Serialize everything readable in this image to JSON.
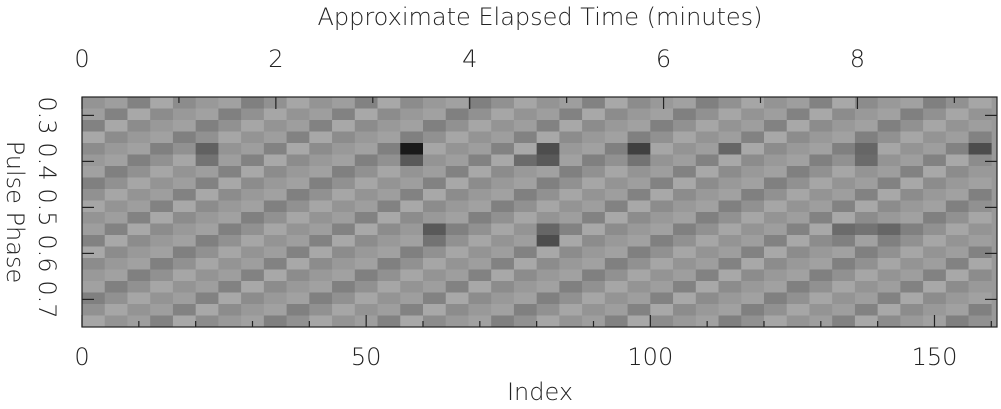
{
  "chart_data": {
    "type": "heatmap",
    "x2label": "Approximate Elapsed Time (minutes)",
    "xlabel": "Index",
    "ylabel": "Pulse Phase",
    "xlim": [
      0,
      161
    ],
    "xticks": [
      0,
      50,
      100,
      150
    ],
    "xminorticks": [
      10,
      20,
      30,
      40,
      60,
      70,
      80,
      90,
      110,
      120,
      130,
      140,
      160
    ],
    "x2lim": [
      0,
      9.44
    ],
    "x2ticks": [
      0,
      2,
      4,
      6,
      8
    ],
    "x2minorticks": [
      1,
      3,
      5,
      7,
      9
    ],
    "ylim": [
      0.26,
      0.76
    ],
    "yticks": [
      0.3,
      0.4,
      0.5,
      0.6,
      0.7
    ],
    "yinverted": true,
    "xbins": [
      0,
      4,
      8,
      12,
      16,
      20,
      24,
      28,
      32,
      36,
      40,
      44,
      48,
      52,
      56,
      60,
      64,
      68,
      72,
      76,
      80,
      84,
      88,
      92,
      96,
      100,
      104,
      108,
      112,
      116,
      120,
      124,
      128,
      132,
      136,
      140,
      144,
      148,
      152,
      156,
      160
    ],
    "ybins": [
      0.26,
      0.285,
      0.31,
      0.335,
      0.36,
      0.385,
      0.41,
      0.435,
      0.46,
      0.485,
      0.51,
      0.535,
      0.56,
      0.585,
      0.61,
      0.635,
      0.66,
      0.685,
      0.71,
      0.735,
      0.76
    ],
    "z": [
      [
        0.58,
        0.62,
        0.51,
        0.66,
        0.55,
        0.6,
        0.63,
        0.5,
        0.57,
        0.65,
        0.58,
        0.62,
        0.51,
        0.66,
        0.55,
        0.6,
        0.63,
        0.5,
        0.57,
        0.65,
        0.58,
        0.62,
        0.51,
        0.66,
        0.55,
        0.6,
        0.63,
        0.5,
        0.57,
        0.65,
        0.58,
        0.62,
        0.51,
        0.66,
        0.55,
        0.6,
        0.63,
        0.5,
        0.57,
        0.65
      ],
      [
        0.62,
        0.51,
        0.66,
        0.55,
        0.6,
        0.63,
        0.5,
        0.57,
        0.65,
        0.58,
        0.62,
        0.51,
        0.66,
        0.55,
        0.6,
        0.63,
        0.5,
        0.57,
        0.65,
        0.58,
        0.62,
        0.51,
        0.66,
        0.55,
        0.6,
        0.63,
        0.5,
        0.57,
        0.65,
        0.58,
        0.62,
        0.51,
        0.66,
        0.55,
        0.6,
        0.63,
        0.5,
        0.57,
        0.65,
        0.58
      ],
      [
        0.51,
        0.66,
        0.55,
        0.6,
        0.63,
        0.5,
        0.57,
        0.65,
        0.58,
        0.62,
        0.51,
        0.66,
        0.55,
        0.6,
        0.63,
        0.5,
        0.57,
        0.65,
        0.58,
        0.62,
        0.51,
        0.66,
        0.55,
        0.6,
        0.63,
        0.5,
        0.57,
        0.65,
        0.58,
        0.62,
        0.51,
        0.66,
        0.55,
        0.6,
        0.63,
        0.5,
        0.57,
        0.65,
        0.58,
        0.62
      ],
      [
        0.66,
        0.55,
        0.6,
        0.63,
        0.5,
        0.57,
        0.65,
        0.58,
        0.62,
        0.51,
        0.66,
        0.55,
        0.6,
        0.63,
        0.5,
        0.57,
        0.65,
        0.58,
        0.62,
        0.51,
        0.66,
        0.55,
        0.6,
        0.63,
        0.5,
        0.57,
        0.65,
        0.58,
        0.62,
        0.51,
        0.66,
        0.55,
        0.6,
        0.63,
        0.5,
        0.57,
        0.65,
        0.58,
        0.62,
        0.51
      ],
      [
        0.55,
        0.6,
        0.63,
        0.5,
        0.57,
        0.38,
        0.58,
        0.62,
        0.51,
        0.66,
        0.55,
        0.6,
        0.63,
        0.5,
        0.1,
        0.65,
        0.58,
        0.62,
        0.51,
        0.66,
        0.3,
        0.6,
        0.63,
        0.5,
        0.25,
        0.65,
        0.58,
        0.62,
        0.4,
        0.66,
        0.55,
        0.6,
        0.63,
        0.5,
        0.4,
        0.65,
        0.58,
        0.62,
        0.51,
        0.3
      ],
      [
        0.6,
        0.63,
        0.5,
        0.57,
        0.65,
        0.45,
        0.62,
        0.51,
        0.66,
        0.55,
        0.6,
        0.63,
        0.5,
        0.57,
        0.35,
        0.58,
        0.62,
        0.51,
        0.66,
        0.42,
        0.35,
        0.63,
        0.5,
        0.57,
        0.45,
        0.58,
        0.62,
        0.51,
        0.66,
        0.55,
        0.6,
        0.63,
        0.5,
        0.57,
        0.42,
        0.58,
        0.62,
        0.51,
        0.66,
        0.55
      ],
      [
        0.63,
        0.5,
        0.57,
        0.65,
        0.58,
        0.62,
        0.51,
        0.66,
        0.55,
        0.6,
        0.63,
        0.5,
        0.57,
        0.65,
        0.58,
        0.62,
        0.51,
        0.66,
        0.55,
        0.6,
        0.63,
        0.5,
        0.57,
        0.65,
        0.58,
        0.62,
        0.51,
        0.66,
        0.55,
        0.6,
        0.63,
        0.5,
        0.57,
        0.65,
        0.58,
        0.62,
        0.51,
        0.66,
        0.55,
        0.6
      ],
      [
        0.5,
        0.57,
        0.65,
        0.58,
        0.62,
        0.51,
        0.66,
        0.55,
        0.6,
        0.63,
        0.5,
        0.57,
        0.65,
        0.58,
        0.62,
        0.51,
        0.66,
        0.55,
        0.6,
        0.63,
        0.5,
        0.57,
        0.65,
        0.58,
        0.62,
        0.51,
        0.66,
        0.55,
        0.6,
        0.63,
        0.5,
        0.57,
        0.65,
        0.58,
        0.62,
        0.51,
        0.66,
        0.55,
        0.6,
        0.63
      ],
      [
        0.57,
        0.65,
        0.58,
        0.62,
        0.51,
        0.66,
        0.55,
        0.6,
        0.63,
        0.5,
        0.57,
        0.65,
        0.58,
        0.62,
        0.51,
        0.66,
        0.55,
        0.6,
        0.63,
        0.5,
        0.57,
        0.65,
        0.58,
        0.62,
        0.51,
        0.66,
        0.55,
        0.6,
        0.63,
        0.5,
        0.57,
        0.65,
        0.58,
        0.62,
        0.51,
        0.66,
        0.55,
        0.6,
        0.63,
        0.5
      ],
      [
        0.65,
        0.58,
        0.62,
        0.51,
        0.66,
        0.55,
        0.6,
        0.63,
        0.5,
        0.57,
        0.65,
        0.58,
        0.62,
        0.51,
        0.66,
        0.55,
        0.6,
        0.63,
        0.5,
        0.57,
        0.65,
        0.58,
        0.62,
        0.51,
        0.66,
        0.55,
        0.6,
        0.63,
        0.5,
        0.57,
        0.65,
        0.58,
        0.62,
        0.51,
        0.66,
        0.55,
        0.6,
        0.63,
        0.5,
        0.57
      ],
      [
        0.58,
        0.62,
        0.51,
        0.66,
        0.55,
        0.6,
        0.63,
        0.5,
        0.57,
        0.65,
        0.58,
        0.62,
        0.51,
        0.66,
        0.55,
        0.6,
        0.63,
        0.5,
        0.57,
        0.65,
        0.58,
        0.62,
        0.51,
        0.66,
        0.55,
        0.6,
        0.63,
        0.5,
        0.57,
        0.65,
        0.58,
        0.62,
        0.51,
        0.66,
        0.55,
        0.6,
        0.63,
        0.5,
        0.57,
        0.65
      ],
      [
        0.62,
        0.51,
        0.66,
        0.55,
        0.6,
        0.63,
        0.5,
        0.57,
        0.65,
        0.58,
        0.62,
        0.51,
        0.66,
        0.55,
        0.6,
        0.35,
        0.5,
        0.57,
        0.65,
        0.58,
        0.4,
        0.51,
        0.66,
        0.55,
        0.6,
        0.63,
        0.5,
        0.57,
        0.65,
        0.58,
        0.62,
        0.51,
        0.66,
        0.42,
        0.45,
        0.4,
        0.5,
        0.57,
        0.65,
        0.58
      ],
      [
        0.51,
        0.66,
        0.55,
        0.6,
        0.63,
        0.5,
        0.57,
        0.65,
        0.58,
        0.62,
        0.51,
        0.66,
        0.55,
        0.6,
        0.63,
        0.45,
        0.57,
        0.65,
        0.58,
        0.62,
        0.3,
        0.66,
        0.55,
        0.6,
        0.63,
        0.5,
        0.57,
        0.65,
        0.58,
        0.62,
        0.51,
        0.66,
        0.55,
        0.5,
        0.63,
        0.5,
        0.57,
        0.65,
        0.58,
        0.62
      ],
      [
        0.66,
        0.55,
        0.6,
        0.63,
        0.5,
        0.57,
        0.65,
        0.58,
        0.62,
        0.51,
        0.66,
        0.55,
        0.6,
        0.63,
        0.5,
        0.57,
        0.65,
        0.58,
        0.62,
        0.51,
        0.66,
        0.55,
        0.6,
        0.63,
        0.5,
        0.57,
        0.65,
        0.58,
        0.62,
        0.51,
        0.66,
        0.55,
        0.6,
        0.63,
        0.5,
        0.57,
        0.65,
        0.58,
        0.62,
        0.51
      ],
      [
        0.55,
        0.6,
        0.63,
        0.5,
        0.57,
        0.65,
        0.58,
        0.62,
        0.51,
        0.66,
        0.55,
        0.6,
        0.63,
        0.5,
        0.57,
        0.65,
        0.58,
        0.62,
        0.51,
        0.66,
        0.55,
        0.6,
        0.63,
        0.5,
        0.57,
        0.65,
        0.58,
        0.62,
        0.51,
        0.66,
        0.55,
        0.6,
        0.63,
        0.5,
        0.57,
        0.65,
        0.58,
        0.62,
        0.51,
        0.66
      ],
      [
        0.6,
        0.63,
        0.5,
        0.57,
        0.65,
        0.58,
        0.62,
        0.51,
        0.66,
        0.55,
        0.6,
        0.63,
        0.5,
        0.57,
        0.65,
        0.58,
        0.62,
        0.51,
        0.66,
        0.55,
        0.6,
        0.63,
        0.5,
        0.57,
        0.65,
        0.58,
        0.62,
        0.51,
        0.66,
        0.55,
        0.6,
        0.63,
        0.5,
        0.57,
        0.65,
        0.58,
        0.62,
        0.51,
        0.66,
        0.55
      ],
      [
        0.63,
        0.5,
        0.57,
        0.65,
        0.58,
        0.62,
        0.51,
        0.66,
        0.55,
        0.6,
        0.63,
        0.5,
        0.57,
        0.65,
        0.58,
        0.62,
        0.51,
        0.66,
        0.55,
        0.6,
        0.63,
        0.5,
        0.57,
        0.65,
        0.58,
        0.62,
        0.51,
        0.66,
        0.55,
        0.6,
        0.63,
        0.5,
        0.57,
        0.65,
        0.58,
        0.62,
        0.51,
        0.66,
        0.55,
        0.6
      ],
      [
        0.5,
        0.57,
        0.65,
        0.58,
        0.62,
        0.51,
        0.66,
        0.55,
        0.6,
        0.63,
        0.5,
        0.57,
        0.65,
        0.58,
        0.62,
        0.51,
        0.66,
        0.55,
        0.6,
        0.63,
        0.5,
        0.57,
        0.65,
        0.58,
        0.62,
        0.51,
        0.66,
        0.55,
        0.6,
        0.63,
        0.5,
        0.57,
        0.65,
        0.58,
        0.62,
        0.51,
        0.66,
        0.55,
        0.6,
        0.63
      ],
      [
        0.57,
        0.65,
        0.58,
        0.62,
        0.51,
        0.66,
        0.55,
        0.6,
        0.63,
        0.5,
        0.57,
        0.65,
        0.58,
        0.62,
        0.51,
        0.66,
        0.55,
        0.6,
        0.63,
        0.5,
        0.57,
        0.65,
        0.58,
        0.62,
        0.51,
        0.66,
        0.55,
        0.6,
        0.63,
        0.5,
        0.57,
        0.65,
        0.58,
        0.62,
        0.51,
        0.66,
        0.55,
        0.6,
        0.63,
        0.5
      ],
      [
        0.65,
        0.58,
        0.62,
        0.51,
        0.66,
        0.55,
        0.6,
        0.63,
        0.5,
        0.57,
        0.65,
        0.58,
        0.62,
        0.51,
        0.66,
        0.55,
        0.6,
        0.63,
        0.5,
        0.57,
        0.65,
        0.58,
        0.62,
        0.51,
        0.66,
        0.55,
        0.6,
        0.63,
        0.5,
        0.57,
        0.65,
        0.58,
        0.62,
        0.51,
        0.66,
        0.55,
        0.6,
        0.63,
        0.5,
        0.57
      ]
    ]
  }
}
